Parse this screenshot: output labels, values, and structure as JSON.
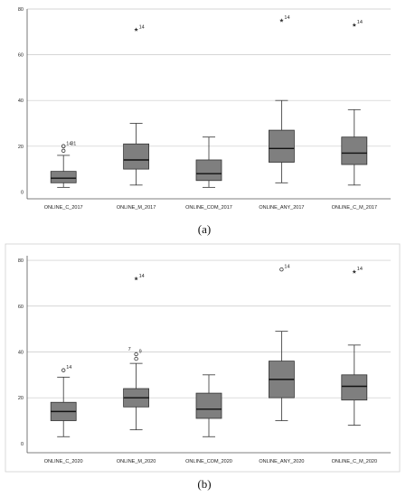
{
  "chart_data": [
    {
      "type": "boxplot",
      "caption": "(a)",
      "categories": [
        "ONLINE_C_2017",
        "ONLINE_M_2017",
        "ONLINE_COM_2017",
        "ONLINE_ANY_2017",
        "ONLINE_C_M_2017"
      ],
      "yticks": [
        "0",
        "20",
        "40",
        "60",
        "80"
      ],
      "ylim": [
        -3,
        80
      ],
      "grid": true,
      "boxes": [
        {
          "min": 2,
          "q1": 4,
          "median": 6,
          "q3": 9,
          "max": 16
        },
        {
          "min": 3,
          "q1": 10,
          "median": 14,
          "q3": 21,
          "max": 30
        },
        {
          "min": 2,
          "q1": 5,
          "median": 8,
          "q3": 14,
          "max": 24
        },
        {
          "min": 4,
          "q1": 13,
          "median": 19,
          "q3": 27,
          "max": 40
        },
        {
          "min": 3,
          "q1": 12,
          "median": 17,
          "q3": 24,
          "max": 36
        }
      ],
      "outliers": [
        {
          "cat": 0,
          "y": 20,
          "marker": "circle",
          "label": "14"
        },
        {
          "cat": 0,
          "y": 20,
          "marker": "circle",
          "label": "31",
          "dx": 5
        },
        {
          "cat": 0,
          "y": 18,
          "marker": "circle",
          "label": ""
        },
        {
          "cat": 1,
          "y": 71,
          "marker": "star",
          "label": "14"
        },
        {
          "cat": 3,
          "y": 75,
          "marker": "star",
          "label": "14"
        },
        {
          "cat": 4,
          "y": 73,
          "marker": "star",
          "label": "14"
        }
      ]
    },
    {
      "type": "boxplot",
      "caption": "(b)",
      "categories": [
        "ONLINE_C_2020",
        "ONLINE_M_2020",
        "ONLINE_COM_2020",
        "ONLINE_ANY_2020",
        "ONLINE_C_M_2020"
      ],
      "yticks": [
        "0",
        "20",
        "40",
        "60",
        "80"
      ],
      "ylim": [
        -4,
        82
      ],
      "grid": true,
      "boxes": [
        {
          "min": 3,
          "q1": 10,
          "median": 14,
          "q3": 18,
          "max": 29
        },
        {
          "min": 6,
          "q1": 16,
          "median": 20,
          "q3": 24,
          "max": 35
        },
        {
          "min": 3,
          "q1": 11,
          "median": 15,
          "q3": 22,
          "max": 30
        },
        {
          "min": 10,
          "q1": 20,
          "median": 28,
          "q3": 36,
          "max": 49
        },
        {
          "min": 8,
          "q1": 19,
          "median": 25,
          "q3": 30,
          "max": 43
        }
      ],
      "outliers": [
        {
          "cat": 0,
          "y": 32,
          "marker": "circle",
          "label": "14"
        },
        {
          "cat": 1,
          "y": 37,
          "marker": "circle",
          "label": ""
        },
        {
          "cat": 1,
          "y": 39,
          "marker": "circle",
          "label": "9"
        },
        {
          "cat": 1,
          "y": 40,
          "marker": "none",
          "label": "7",
          "dx": -12
        },
        {
          "cat": 1,
          "y": 72,
          "marker": "star",
          "label": "14"
        },
        {
          "cat": 3,
          "y": 76,
          "marker": "circle",
          "label": "14"
        },
        {
          "cat": 4,
          "y": 75,
          "marker": "star",
          "label": "14"
        }
      ]
    }
  ]
}
